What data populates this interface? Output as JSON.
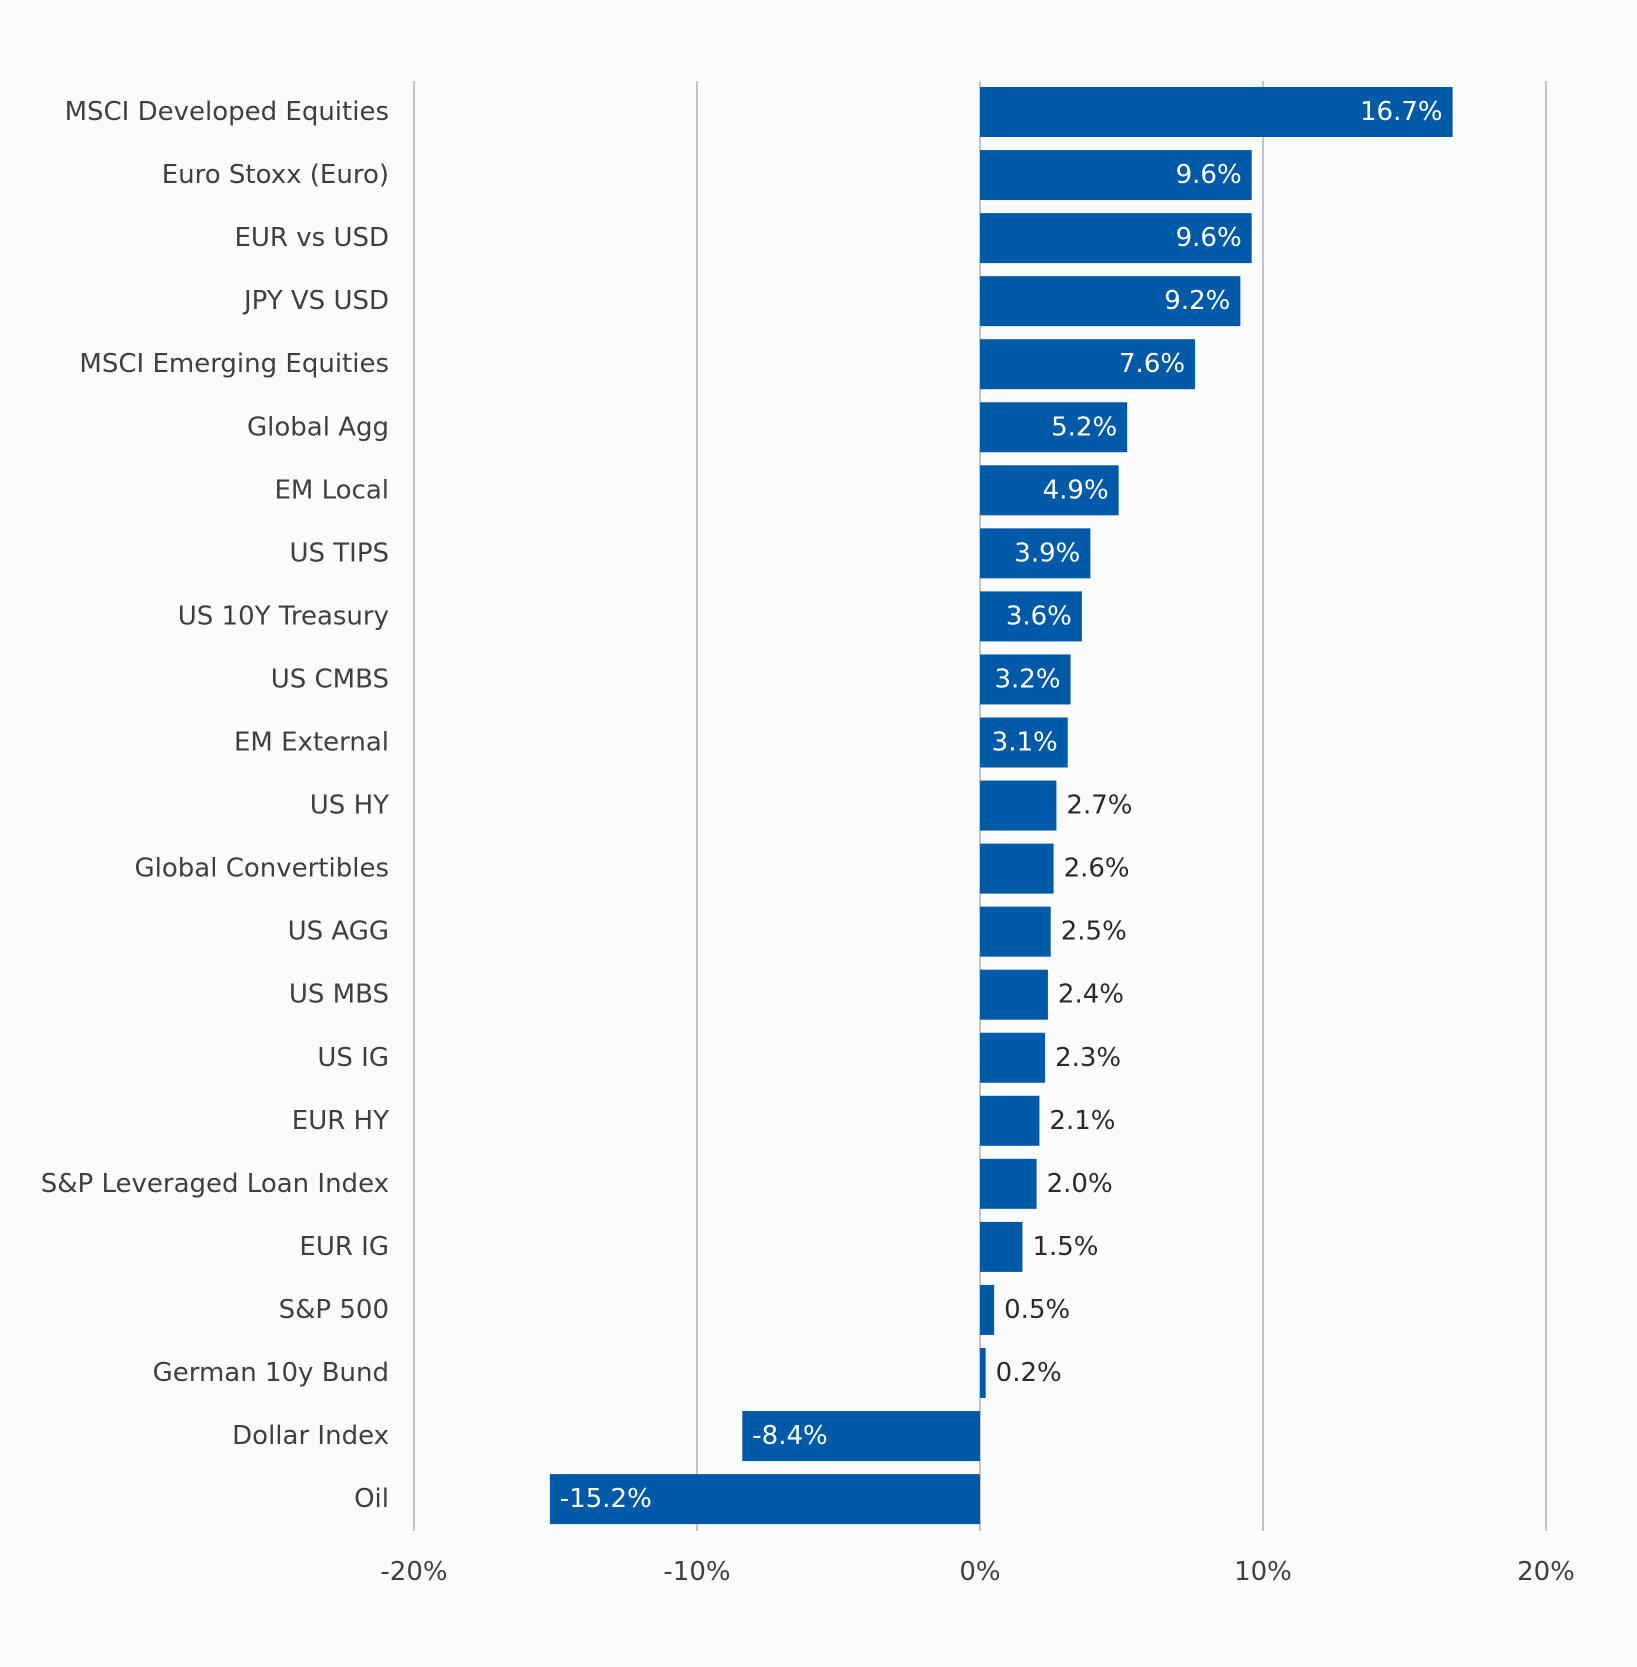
{
  "chart_data": {
    "type": "bar",
    "orientation": "horizontal",
    "categories": [
      "MSCI Developed Equities",
      "Euro Stoxx (Euro)",
      "EUR vs USD",
      "JPY VS USD",
      "MSCI Emerging Equities",
      "Global Agg",
      "EM Local",
      "US TIPS",
      "US 10Y Treasury",
      "US CMBS",
      "EM External",
      "US HY",
      "Global Convertibles",
      "US AGG",
      "US MBS",
      "US IG",
      "EUR HY",
      "S&P Leveraged Loan Index",
      "EUR IG",
      "S&P 500",
      "German 10y Bund",
      "Dollar Index",
      "Oil"
    ],
    "values": [
      16.7,
      9.6,
      9.6,
      9.2,
      7.6,
      5.2,
      4.9,
      3.9,
      3.6,
      3.2,
      3.1,
      2.7,
      2.6,
      2.5,
      2.4,
      2.3,
      2.1,
      2.0,
      1.5,
      0.5,
      0.2,
      -8.4,
      -15.2
    ],
    "data_labels": [
      "16.7%",
      "9.6%",
      "9.6%",
      "9.2%",
      "7.6%",
      "5.2%",
      "4.9%",
      "3.9%",
      "3.6%",
      "3.2%",
      "3.1%",
      "2.7%",
      "2.6%",
      "2.5%",
      "2.4%",
      "2.3%",
      "2.1%",
      "2.0%",
      "1.5%",
      "0.5%",
      "0.2%",
      "-8.4%",
      "-15.2%"
    ],
    "title": "",
    "xlabel": "",
    "ylabel": "",
    "xlim": [
      -20,
      20
    ],
    "x_ticks": [
      -20,
      -10,
      0,
      10,
      20
    ],
    "x_tick_labels": [
      "-20%",
      "-10%",
      "0%",
      "10%",
      "20%"
    ],
    "grid": true,
    "bar_color": "#005aa7",
    "label_inside_threshold": 3.0
  }
}
